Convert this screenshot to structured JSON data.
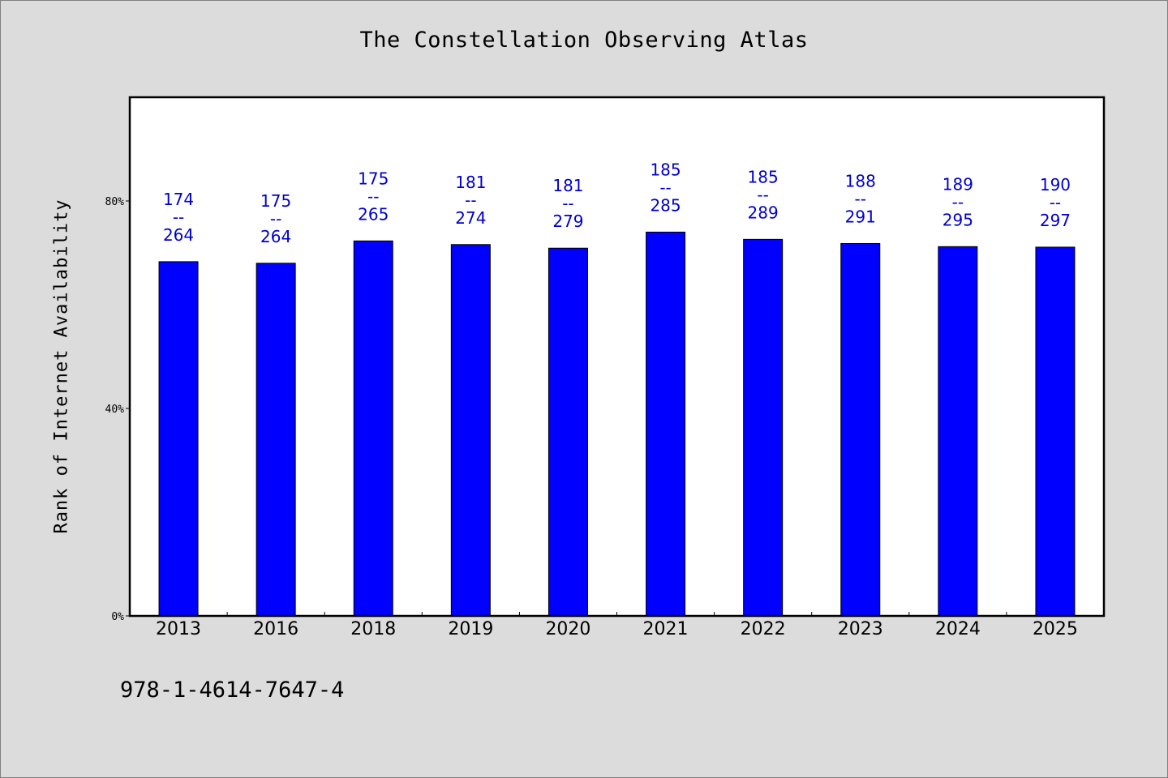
{
  "title": "The Constellation Observing Atlas",
  "footer_text": "978-1-4614-7647-4",
  "chart_data": {
    "type": "bar",
    "title": "The Constellation Observing Atlas",
    "xlabel": "",
    "ylabel": "Rank of Internet Availability",
    "categories": [
      "2013",
      "2016",
      "2018",
      "2019",
      "2020",
      "2021",
      "2022",
      "2023",
      "2024",
      "2025"
    ],
    "values": [
      0.659,
      0.663,
      0.66,
      0.661,
      0.649,
      0.649,
      0.64,
      0.646,
      0.641,
      0.64
    ],
    "data_labels": [
      [
        "174",
        "--",
        "264"
      ],
      [
        "175",
        "--",
        "264"
      ],
      [
        "175",
        "--",
        "265"
      ],
      [
        "181",
        "--",
        "274"
      ],
      [
        "181",
        "--",
        "279"
      ],
      [
        "185",
        "--",
        "285"
      ],
      [
        "185",
        "--",
        "289"
      ],
      [
        "188",
        "--",
        "291"
      ],
      [
        "189",
        "--",
        "295"
      ],
      [
        "190",
        "--",
        "297"
      ]
    ],
    "bar_heights_percent": [
      68.3,
      68.0,
      72.3,
      71.6,
      70.9,
      74.0,
      72.6,
      71.8,
      71.2,
      71.1
    ],
    "yticks": [
      "0%",
      "40%",
      "80%"
    ],
    "ytick_values": [
      0,
      40,
      80
    ],
    "ylim": [
      0,
      100
    ],
    "grid": false,
    "bar_color": "#0000ff",
    "label_color": "#0000cc",
    "plot_background": "#ffffff",
    "page_background": "#dcdcdc"
  }
}
